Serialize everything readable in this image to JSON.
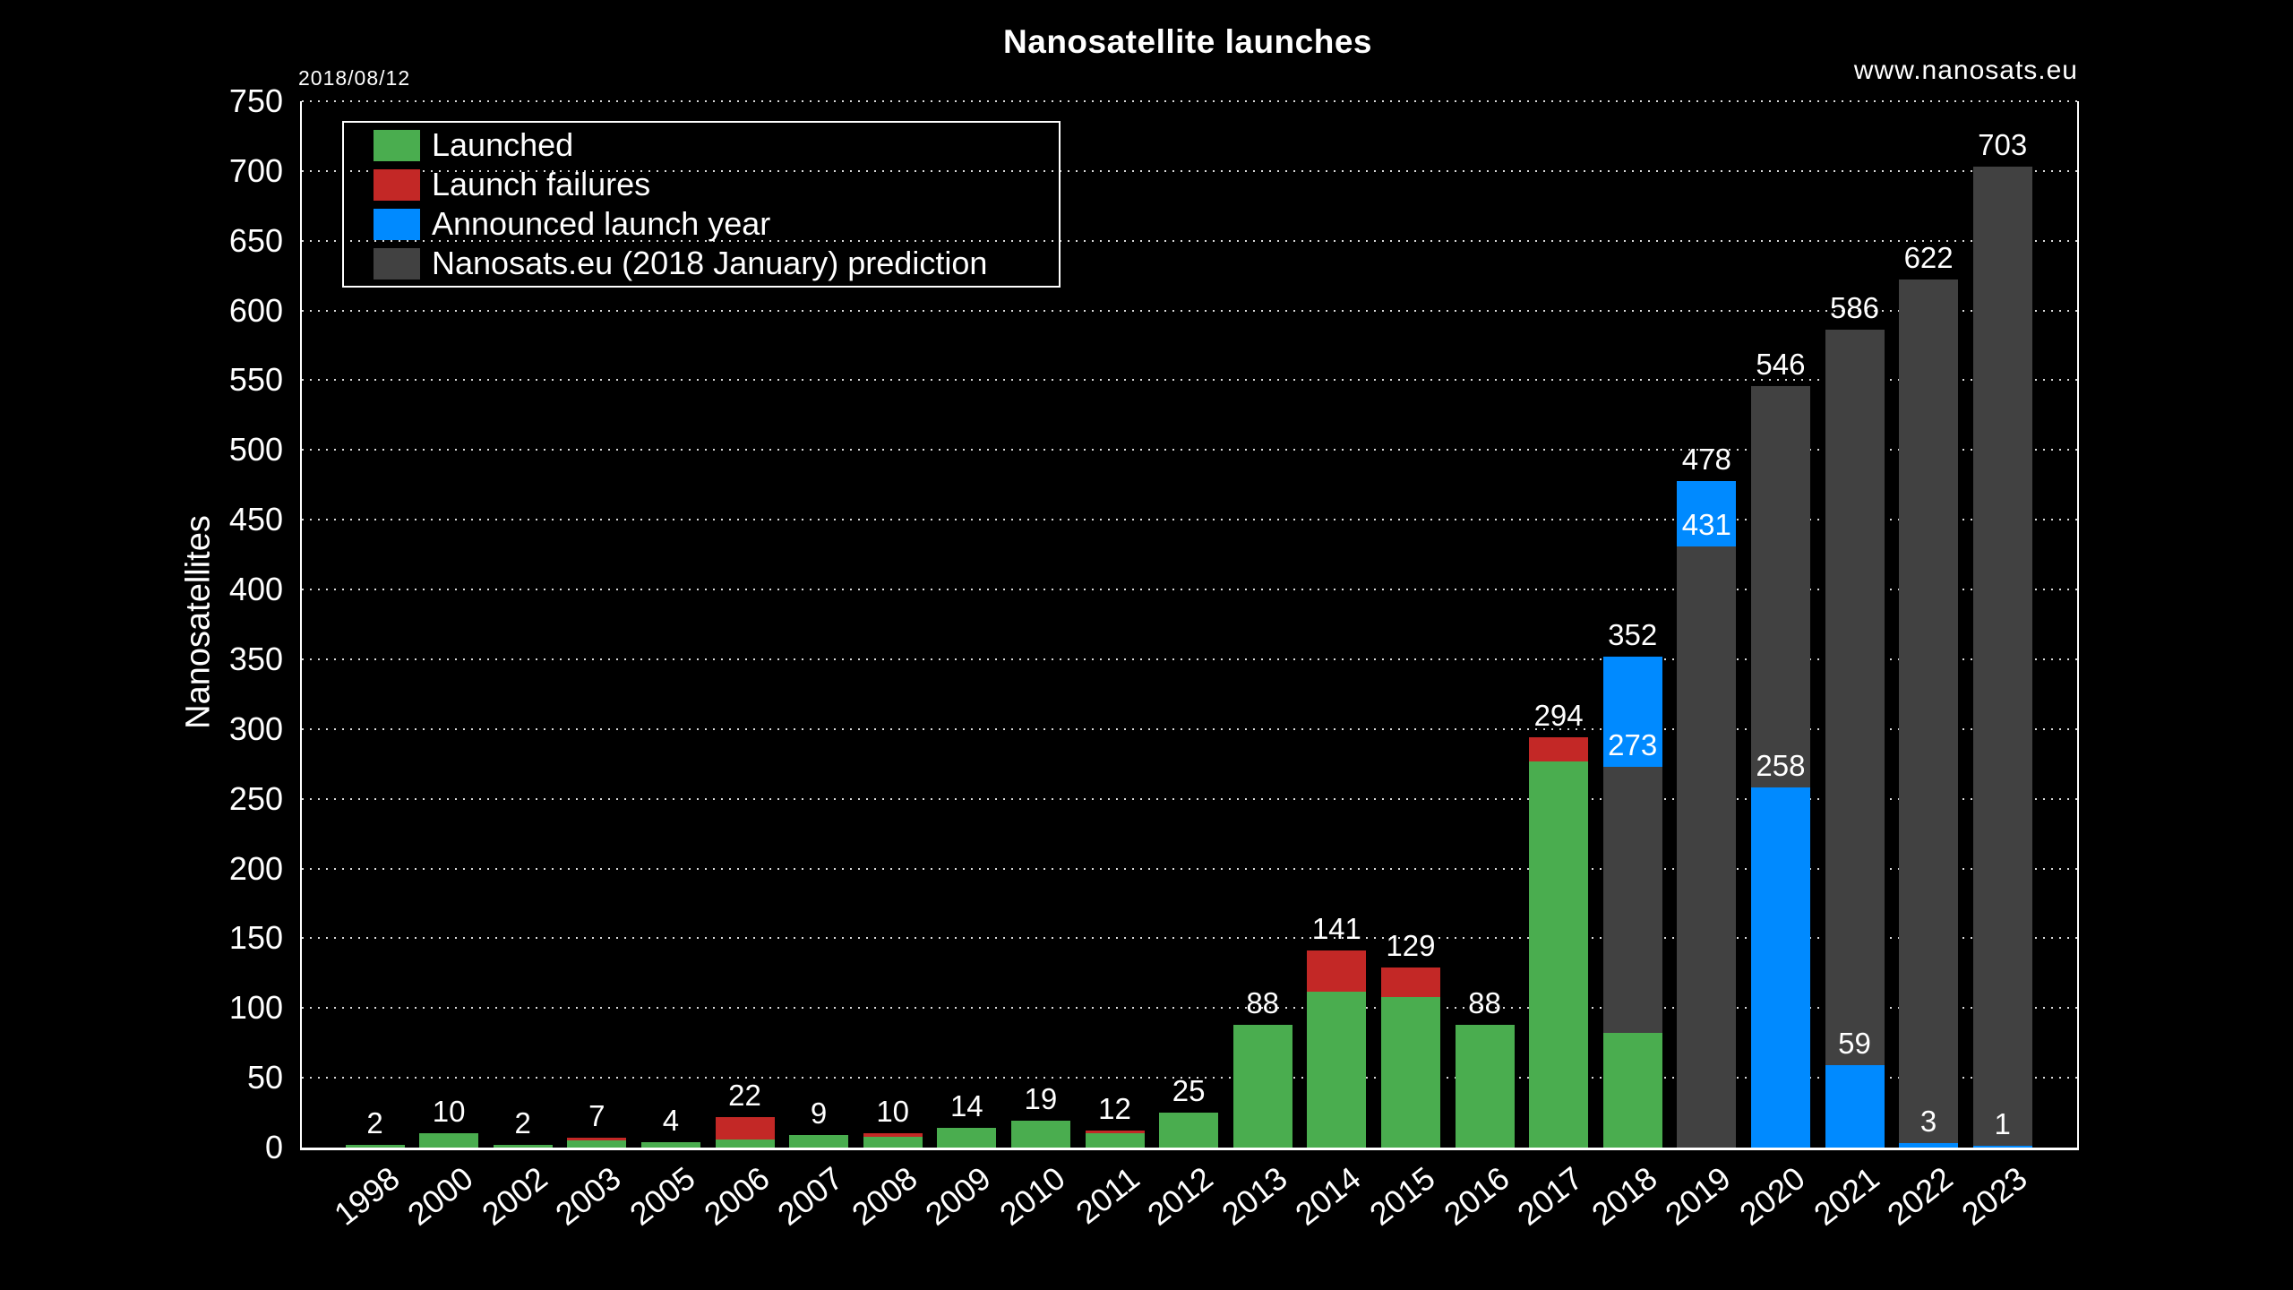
{
  "header": {
    "date": "2018/08/12",
    "title": "Nanosatellite launches",
    "website": "www.nanosats.eu"
  },
  "legend": [
    {
      "series": "launched",
      "label": "Launched"
    },
    {
      "series": "failures",
      "label": "Launch failures"
    },
    {
      "series": "announced",
      "label": "Announced launch year"
    },
    {
      "series": "prediction",
      "label": "Nanosats.eu (2018 January) prediction"
    }
  ],
  "chart_data": {
    "type": "bar",
    "title": "Nanosatellite launches",
    "xlabel": "",
    "ylabel": "Nanosatellites",
    "ylim": [
      0,
      750
    ],
    "ytick_step": 50,
    "grid": "horizontal-dotted",
    "legend_position": "top-left",
    "background": "#000000",
    "series_colors": {
      "launched": "#4AAD4F",
      "failures": "#C32826",
      "announced": "#008AFF",
      "prediction": "#414141"
    },
    "categories": [
      "1998",
      "2000",
      "2002",
      "2003",
      "2005",
      "2006",
      "2007",
      "2008",
      "2009",
      "2010",
      "2011",
      "2012",
      "2013",
      "2014",
      "2015",
      "2016",
      "2017",
      "2018",
      "2019",
      "2020",
      "2021",
      "2022",
      "2023"
    ],
    "bars": [
      {
        "year": "1998",
        "segments": [
          {
            "series": "launched",
            "from": 0,
            "to": 2
          }
        ],
        "labels": [
          {
            "text": "2",
            "at": 2
          }
        ]
      },
      {
        "year": "2000",
        "segments": [
          {
            "series": "launched",
            "from": 0,
            "to": 10
          }
        ],
        "labels": [
          {
            "text": "10",
            "at": 10
          }
        ]
      },
      {
        "year": "2002",
        "segments": [
          {
            "series": "launched",
            "from": 0,
            "to": 2
          }
        ],
        "labels": [
          {
            "text": "2",
            "at": 2
          }
        ]
      },
      {
        "year": "2003",
        "segments": [
          {
            "series": "launched",
            "from": 0,
            "to": 5
          },
          {
            "series": "failures",
            "from": 5,
            "to": 7
          }
        ],
        "labels": [
          {
            "text": "7",
            "at": 7
          }
        ]
      },
      {
        "year": "2005",
        "segments": [
          {
            "series": "launched",
            "from": 0,
            "to": 4
          }
        ],
        "labels": [
          {
            "text": "4",
            "at": 4
          }
        ]
      },
      {
        "year": "2006",
        "segments": [
          {
            "series": "launched",
            "from": 0,
            "to": 6
          },
          {
            "series": "failures",
            "from": 6,
            "to": 22
          }
        ],
        "labels": [
          {
            "text": "22",
            "at": 22
          }
        ]
      },
      {
        "year": "2007",
        "segments": [
          {
            "series": "launched",
            "from": 0,
            "to": 9
          }
        ],
        "labels": [
          {
            "text": "9",
            "at": 9
          }
        ]
      },
      {
        "year": "2008",
        "segments": [
          {
            "series": "launched",
            "from": 0,
            "to": 8
          },
          {
            "series": "failures",
            "from": 8,
            "to": 10
          }
        ],
        "labels": [
          {
            "text": "10",
            "at": 10
          }
        ]
      },
      {
        "year": "2009",
        "segments": [
          {
            "series": "launched",
            "from": 0,
            "to": 14
          }
        ],
        "labels": [
          {
            "text": "14",
            "at": 14
          }
        ]
      },
      {
        "year": "2010",
        "segments": [
          {
            "series": "launched",
            "from": 0,
            "to": 19
          }
        ],
        "labels": [
          {
            "text": "19",
            "at": 19
          }
        ]
      },
      {
        "year": "2011",
        "segments": [
          {
            "series": "launched",
            "from": 0,
            "to": 10
          },
          {
            "series": "failures",
            "from": 10,
            "to": 12
          }
        ],
        "labels": [
          {
            "text": "12",
            "at": 12
          }
        ]
      },
      {
        "year": "2012",
        "segments": [
          {
            "series": "launched",
            "from": 0,
            "to": 25
          }
        ],
        "labels": [
          {
            "text": "25",
            "at": 25
          }
        ]
      },
      {
        "year": "2013",
        "segments": [
          {
            "series": "launched",
            "from": 0,
            "to": 88
          }
        ],
        "labels": [
          {
            "text": "88",
            "at": 88
          }
        ]
      },
      {
        "year": "2014",
        "segments": [
          {
            "series": "launched",
            "from": 0,
            "to": 112
          },
          {
            "series": "failures",
            "from": 112,
            "to": 141
          }
        ],
        "labels": [
          {
            "text": "141",
            "at": 141
          }
        ]
      },
      {
        "year": "2015",
        "segments": [
          {
            "series": "launched",
            "from": 0,
            "to": 108
          },
          {
            "series": "failures",
            "from": 108,
            "to": 129
          }
        ],
        "labels": [
          {
            "text": "129",
            "at": 129
          }
        ]
      },
      {
        "year": "2016",
        "segments": [
          {
            "series": "launched",
            "from": 0,
            "to": 88
          }
        ],
        "labels": [
          {
            "text": "88",
            "at": 88
          }
        ]
      },
      {
        "year": "2017",
        "segments": [
          {
            "series": "launched",
            "from": 0,
            "to": 277
          },
          {
            "series": "failures",
            "from": 277,
            "to": 294
          }
        ],
        "labels": [
          {
            "text": "294",
            "at": 294
          }
        ]
      },
      {
        "year": "2018",
        "segments": [
          {
            "series": "launched",
            "from": 0,
            "to": 82
          },
          {
            "series": "prediction",
            "from": 82,
            "to": 273
          },
          {
            "series": "announced",
            "from": 273,
            "to": 352
          }
        ],
        "labels": [
          {
            "text": "352",
            "at": 352
          },
          {
            "text": "273",
            "at": 273
          }
        ]
      },
      {
        "year": "2019",
        "segments": [
          {
            "series": "prediction",
            "from": 0,
            "to": 431
          },
          {
            "series": "announced",
            "from": 431,
            "to": 478
          }
        ],
        "labels": [
          {
            "text": "478",
            "at": 478
          },
          {
            "text": "431",
            "at": 431
          }
        ]
      },
      {
        "year": "2020",
        "segments": [
          {
            "series": "prediction",
            "from": 258,
            "to": 546
          },
          {
            "series": "announced",
            "from": 0,
            "to": 258
          }
        ],
        "labels": [
          {
            "text": "546",
            "at": 546
          },
          {
            "text": "258",
            "at": 258
          }
        ]
      },
      {
        "year": "2021",
        "segments": [
          {
            "series": "prediction",
            "from": 59,
            "to": 586
          },
          {
            "series": "announced",
            "from": 0,
            "to": 59
          }
        ],
        "labels": [
          {
            "text": "586",
            "at": 586
          },
          {
            "text": "59",
            "at": 59
          }
        ]
      },
      {
        "year": "2022",
        "segments": [
          {
            "series": "prediction",
            "from": 3,
            "to": 622
          },
          {
            "series": "announced",
            "from": 0,
            "to": 3
          }
        ],
        "labels": [
          {
            "text": "622",
            "at": 622
          },
          {
            "text": "3",
            "at": 3
          }
        ]
      },
      {
        "year": "2023",
        "segments": [
          {
            "series": "prediction",
            "from": 1,
            "to": 703
          },
          {
            "series": "announced",
            "from": 0,
            "to": 1
          }
        ],
        "labels": [
          {
            "text": "703",
            "at": 703
          },
          {
            "text": "1",
            "at": 1
          }
        ]
      }
    ]
  }
}
